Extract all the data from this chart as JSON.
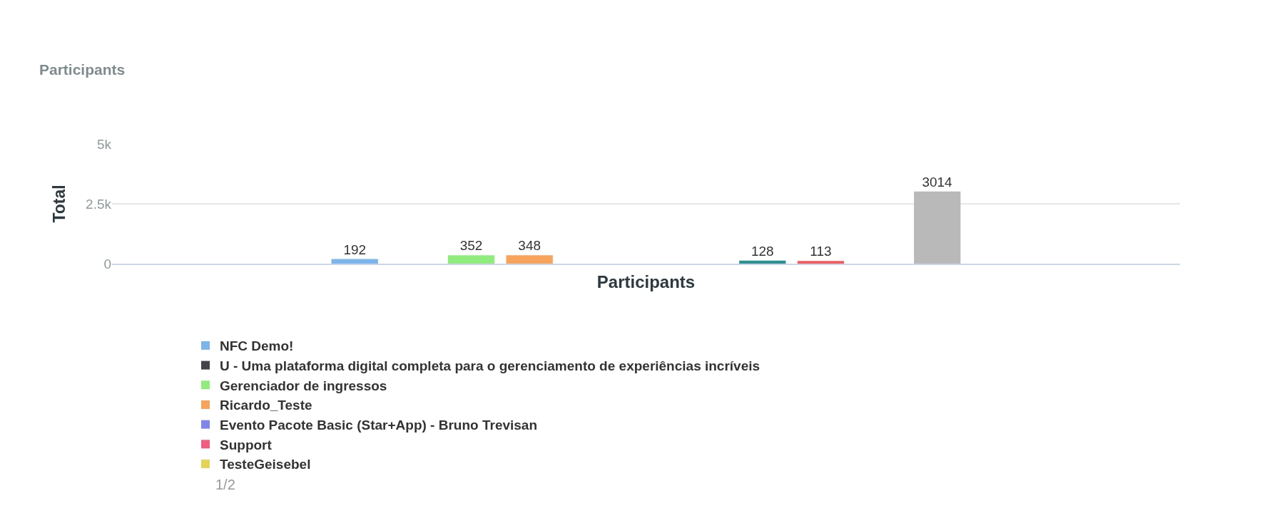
{
  "chart_data": {
    "type": "bar",
    "title": "Participants",
    "xlabel": "Participants",
    "ylabel": "Total",
    "categories": [
      null
    ],
    "series": [
      {
        "name": "NFC Demo!",
        "color": "#7cb5ec",
        "values": [
          192
        ]
      },
      {
        "name": "U - Uma plataforma digital completa para o gerenciamento de experiências incríveis",
        "color": "#434348",
        "values": [
          null
        ]
      },
      {
        "name": "Gerenciador de ingressos",
        "color": "#90ed7d",
        "values": [
          352
        ]
      },
      {
        "name": "Ricardo_Teste",
        "color": "#f7a35c",
        "values": [
          348
        ]
      },
      {
        "name": "Evento Pacote Basic (Star+App) - Bruno Trevisan",
        "color": "#8085e9",
        "values": [
          null
        ]
      },
      {
        "name": "Support",
        "color": "#f15c80",
        "values": [
          null
        ]
      },
      {
        "name": "TesteGeisebel",
        "color": "#e4d354",
        "values": [
          null
        ]
      },
      {
        "color": "#2b908f",
        "values": [
          128
        ]
      },
      {
        "color": "#f45b5b",
        "values": [
          113
        ]
      },
      {
        "values": [
          null
        ]
      },
      {
        "color": "#b9b9b9",
        "values": [
          3014
        ]
      }
    ],
    "ylim": [
      0,
      5000
    ],
    "yticks": [
      0,
      {
        "value": 2500,
        "label": "2.5k"
      },
      {
        "value": 5000,
        "label": "5k"
      }
    ],
    "grid": "y",
    "legend": "bottom",
    "data_labels": true,
    "annotations": [
      "1/2"
    ]
  }
}
